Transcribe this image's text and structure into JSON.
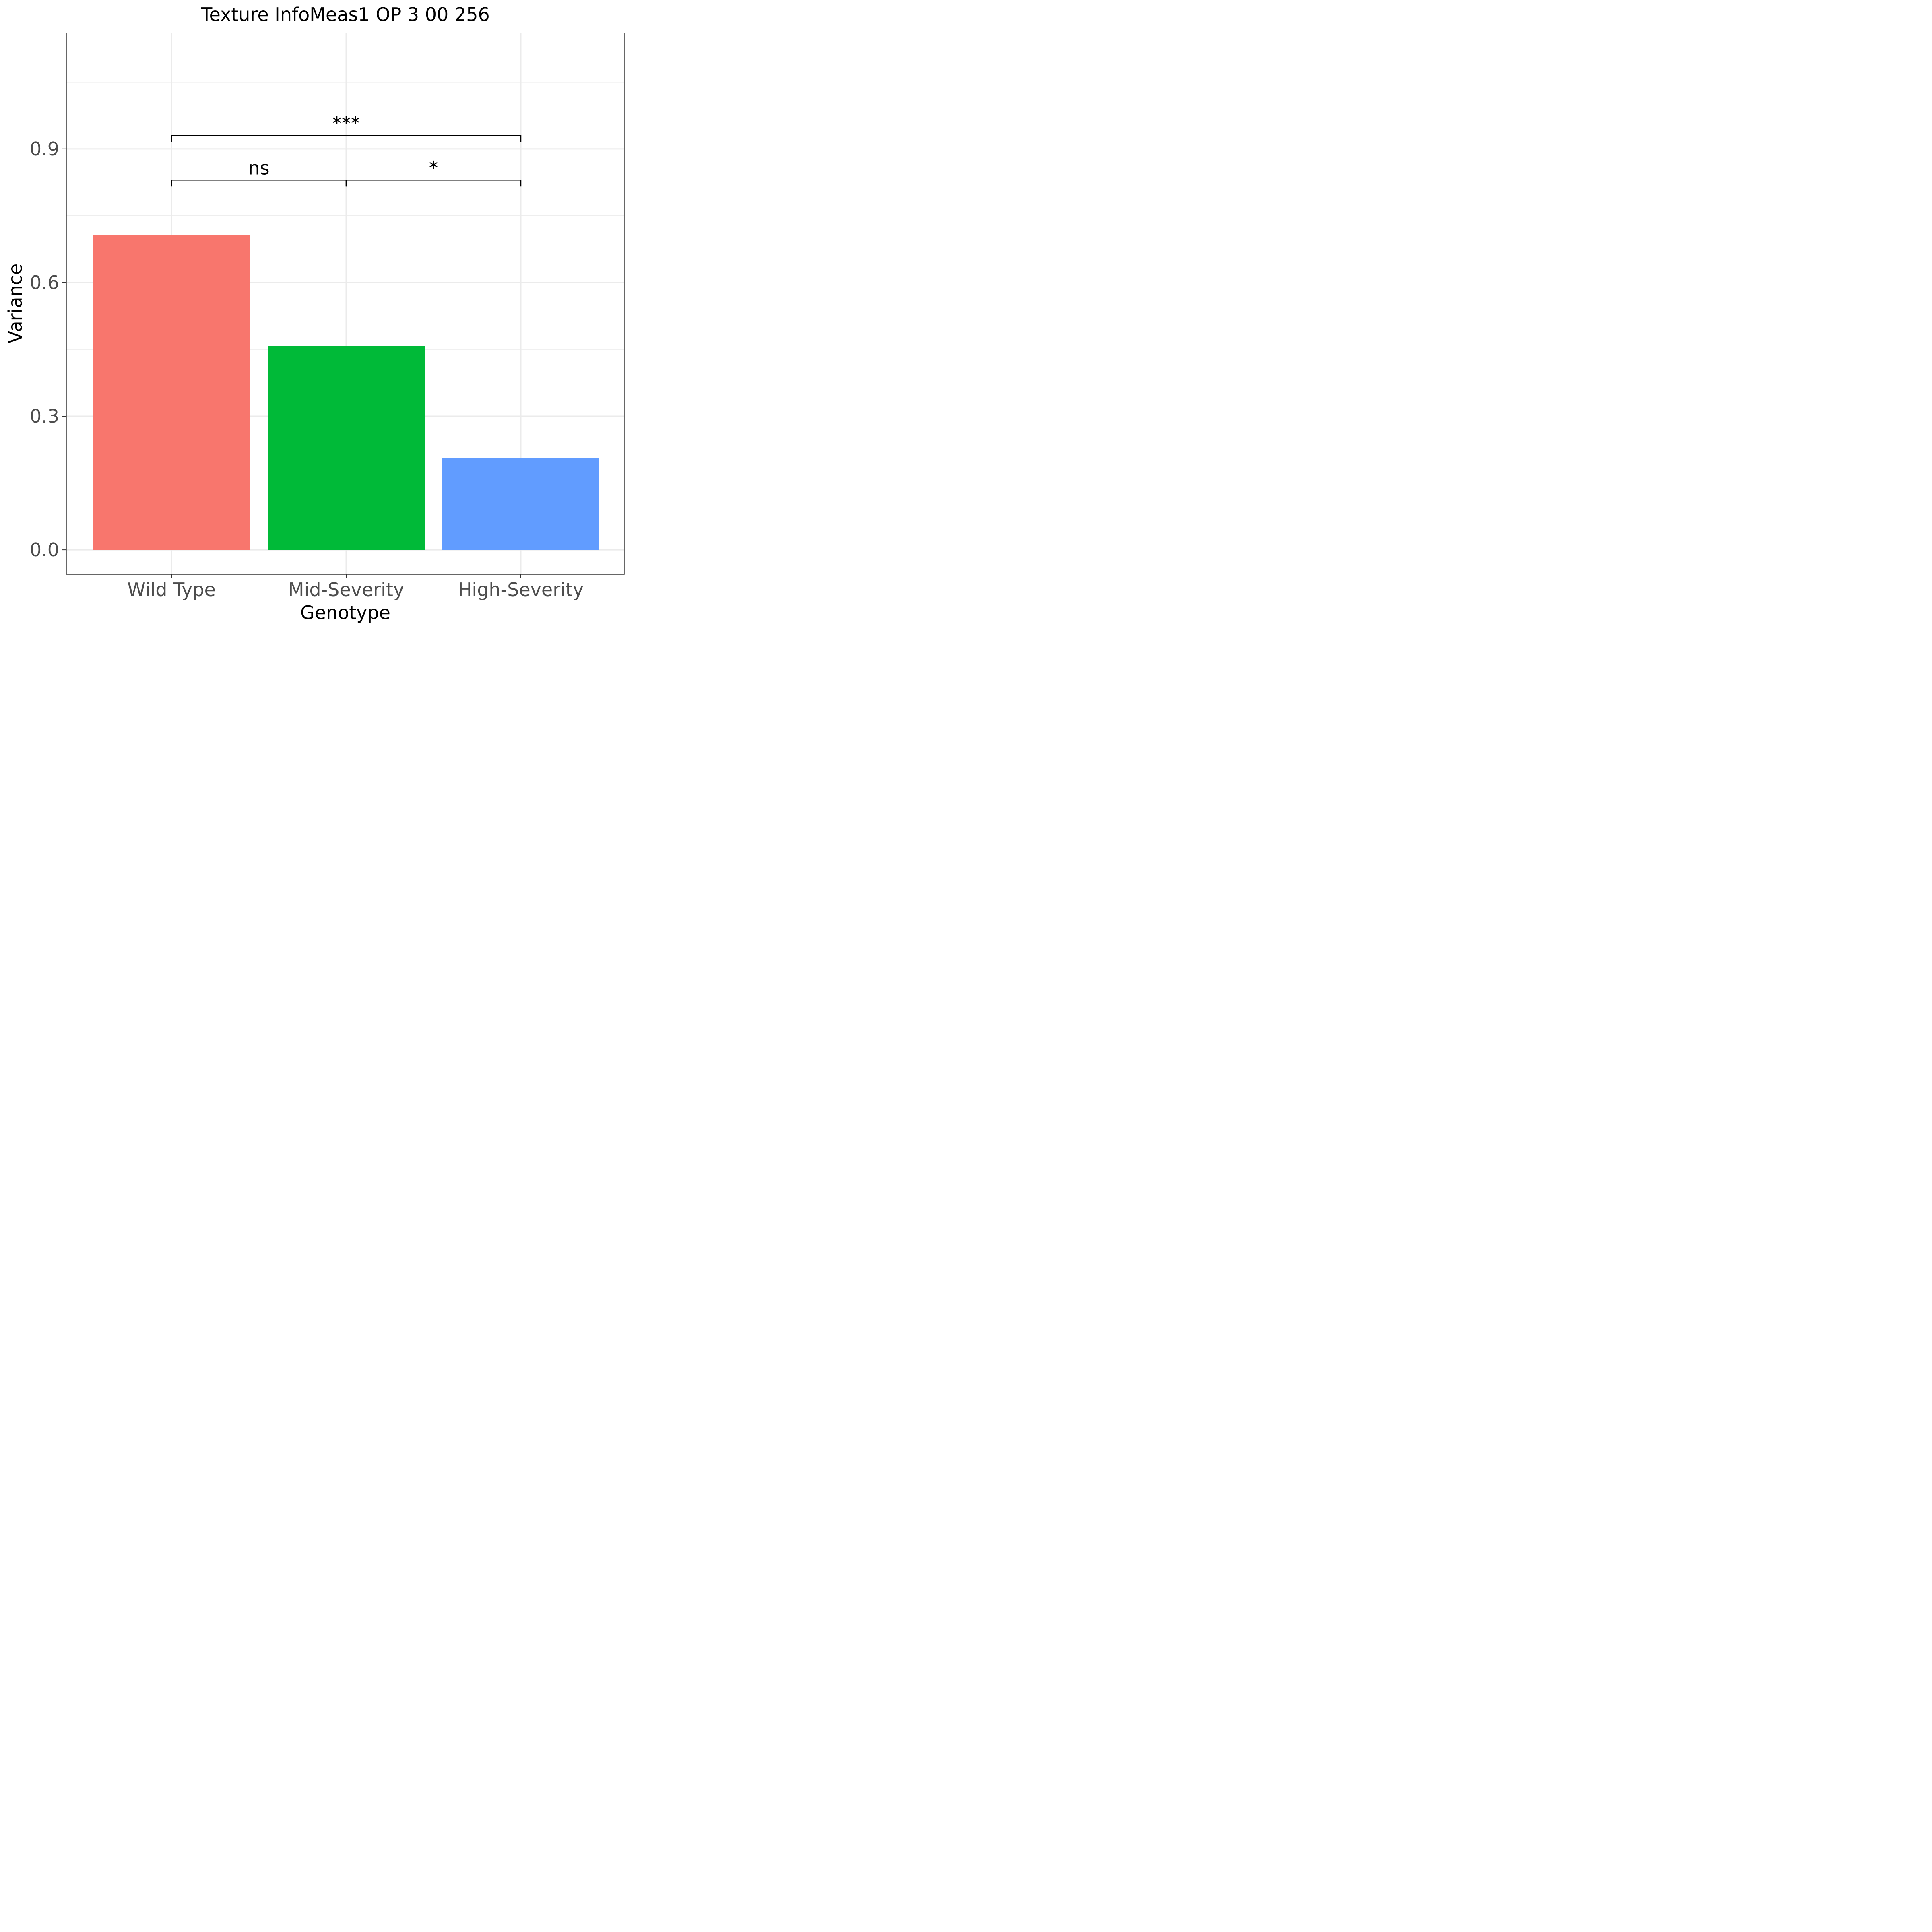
{
  "chart_data": {
    "type": "bar",
    "title": "Texture InfoMeas1 OP 3 00 256",
    "xlabel": "Genotype",
    "ylabel": "Variance",
    "categories": [
      "Wild Type",
      "Mid-Severity",
      "High-Severity"
    ],
    "values": [
      0.706,
      0.458,
      0.206
    ],
    "colors": [
      "#F8766D",
      "#00BA38",
      "#619CFF"
    ],
    "ylim": [
      -0.055,
      1.16
    ],
    "yticks": [
      0.0,
      0.3,
      0.6,
      0.9
    ],
    "ytick_labels": [
      "0.0",
      "0.3",
      "0.6",
      "0.9"
    ],
    "grid": true,
    "significance": [
      {
        "from": "Wild Type",
        "to": "Mid-Severity",
        "label": "ns",
        "y": 0.83
      },
      {
        "from": "Mid-Severity",
        "to": "High-Severity",
        "label": "*",
        "y": 0.83
      },
      {
        "from": "Wild Type",
        "to": "High-Severity",
        "label": "***",
        "y": 0.93
      }
    ]
  }
}
